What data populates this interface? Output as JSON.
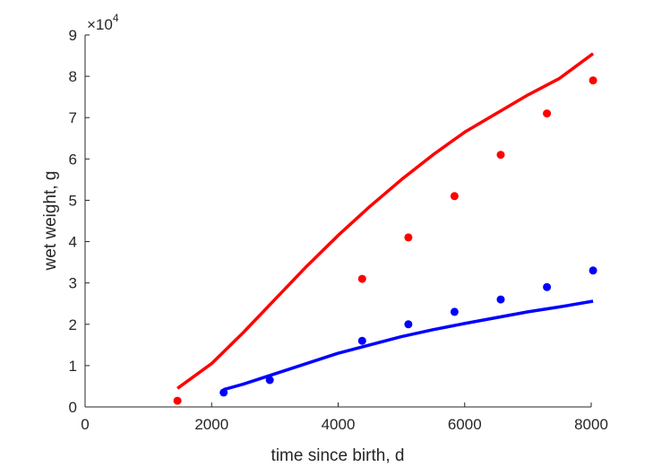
{
  "chart_data": {
    "type": "scatter",
    "title": "",
    "xlabel": "time since birth, d",
    "ylabel": "wet weight, g",
    "y_exponent_label": {
      "base": "×10",
      "power": "4"
    },
    "xlim": [
      0,
      8000
    ],
    "ylim": [
      0,
      90000
    ],
    "x_ticks": [
      0,
      2000,
      4000,
      6000,
      8000
    ],
    "x_tick_labels": [
      "0",
      "2000",
      "4000",
      "6000",
      "8000"
    ],
    "y_ticks": [
      0,
      10000,
      20000,
      30000,
      40000,
      50000,
      60000,
      70000,
      80000,
      90000
    ],
    "y_tick_labels": [
      "0",
      "1",
      "2",
      "3",
      "4",
      "5",
      "6",
      "7",
      "8",
      "9"
    ],
    "grid": false,
    "legend": "none",
    "series": [
      {
        "kind": "points",
        "color": "#ff0000",
        "x": [
          1460,
          4380,
          5110,
          5840,
          6570,
          7300,
          8030
        ],
        "y": [
          1500,
          31000,
          41000,
          51000,
          61000,
          71000,
          79000
        ]
      },
      {
        "kind": "points",
        "color": "#0000ff",
        "x": [
          2190,
          2920,
          4380,
          5110,
          5840,
          6570,
          7300,
          8030
        ],
        "y": [
          3500,
          6500,
          16000,
          20000,
          23000,
          26000,
          29000,
          33000
        ]
      },
      {
        "kind": "line",
        "color": "#ff0000",
        "x": [
          1460,
          2000,
          2500,
          3000,
          3500,
          4000,
          4500,
          5000,
          5500,
          6000,
          6500,
          7000,
          7500,
          8030
        ],
        "y": [
          4500,
          10500,
          18000,
          26000,
          34000,
          41500,
          48500,
          55000,
          61000,
          66500,
          71000,
          75500,
          79500,
          85500
        ]
      },
      {
        "kind": "line",
        "color": "#0000ff",
        "x": [
          2190,
          2500,
          3000,
          3500,
          4000,
          4500,
          5000,
          5500,
          6000,
          6500,
          7000,
          7500,
          8030
        ],
        "y": [
          4200,
          5500,
          8000,
          10500,
          13000,
          15000,
          17000,
          18700,
          20200,
          21600,
          23000,
          24200,
          25600
        ]
      }
    ]
  }
}
